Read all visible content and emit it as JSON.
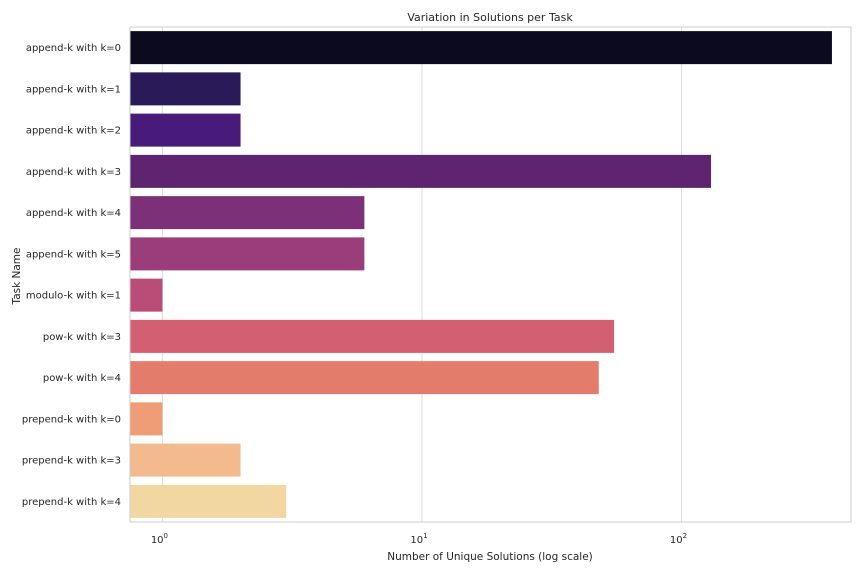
{
  "chart_data": {
    "type": "bar",
    "orientation": "horizontal",
    "title": "Variation in Solutions per Task",
    "xlabel": "Number of Unique Solutions (log scale)",
    "ylabel": "Task Name",
    "x_scale": "log",
    "xlim": [
      0.75,
      450
    ],
    "x_ticks": [
      {
        "value": 1,
        "label": "10",
        "exp": "0"
      },
      {
        "value": 10,
        "label": "10",
        "exp": "1"
      },
      {
        "value": 100,
        "label": "10",
        "exp": "2"
      }
    ],
    "grid": true,
    "categories": [
      "append-k with k=0",
      "append-k with k=1",
      "append-k with k=2",
      "append-k with k=3",
      "append-k with k=4",
      "append-k with k=5",
      "modulo-k with k=1",
      "pow-k with k=3",
      "pow-k with k=4",
      "prepend-k with k=0",
      "prepend-k with k=3",
      "prepend-k with k=4"
    ],
    "values": [
      380,
      2,
      2,
      130,
      6,
      6,
      1,
      55,
      48,
      1,
      2,
      3
    ],
    "colors": [
      "#0c0a1f",
      "#2a1a58",
      "#481b7a",
      "#5e2470",
      "#7b3078",
      "#9a3d7a",
      "#b94d78",
      "#d35f72",
      "#e47c6c",
      "#ee9d76",
      "#f3ba8e",
      "#f3d7a2"
    ]
  }
}
